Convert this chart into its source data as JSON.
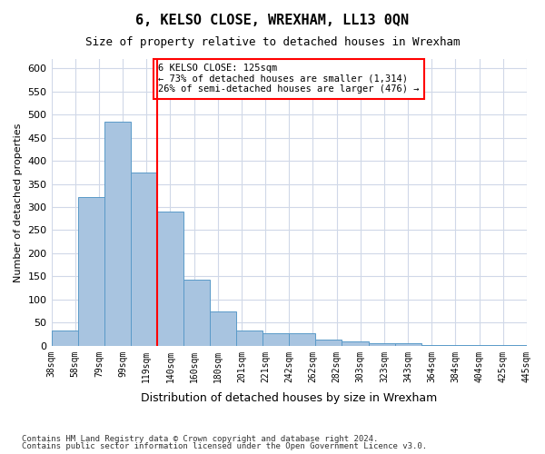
{
  "title": "6, KELSO CLOSE, WREXHAM, LL13 0QN",
  "subtitle": "Size of property relative to detached houses in Wrexham",
  "xlabel": "Distribution of detached houses by size in Wrexham",
  "ylabel": "Number of detached properties",
  "footnote1": "Contains HM Land Registry data © Crown copyright and database right 2024.",
  "footnote2": "Contains public sector information licensed under the Open Government Licence v3.0.",
  "bar_values": [
    33,
    322,
    485,
    374,
    291,
    143,
    75,
    33,
    28,
    28,
    14,
    10,
    5,
    5,
    2,
    1,
    1,
    1
  ],
  "bin_labels": [
    "38sqm",
    "58sqm",
    "79sqm",
    "99sqm",
    "119sqm",
    "140sqm",
    "160sqm",
    "180sqm",
    "201sqm",
    "221sqm",
    "242sqm",
    "262sqm",
    "282sqm",
    "303sqm",
    "323sqm",
    "343sqm",
    "364sqm",
    "384sqm",
    "404sqm",
    "425sqm",
    "445sqm"
  ],
  "bar_color": "#a8c4e0",
  "bar_edge_color": "#5a9ac8",
  "grid_color": "#d0d8e8",
  "annotation_text_line1": "6 KELSO CLOSE: 125sqm",
  "annotation_text_line2": "← 73% of detached houses are smaller (1,314)",
  "annotation_text_line3": "26% of semi-detached houses are larger (476) →",
  "red_line_x": 3.5,
  "ylim": [
    0,
    620
  ],
  "yticks": [
    0,
    50,
    100,
    150,
    200,
    250,
    300,
    350,
    400,
    450,
    500,
    550,
    600
  ],
  "figsize": [
    6.0,
    5.0
  ],
  "dpi": 100
}
